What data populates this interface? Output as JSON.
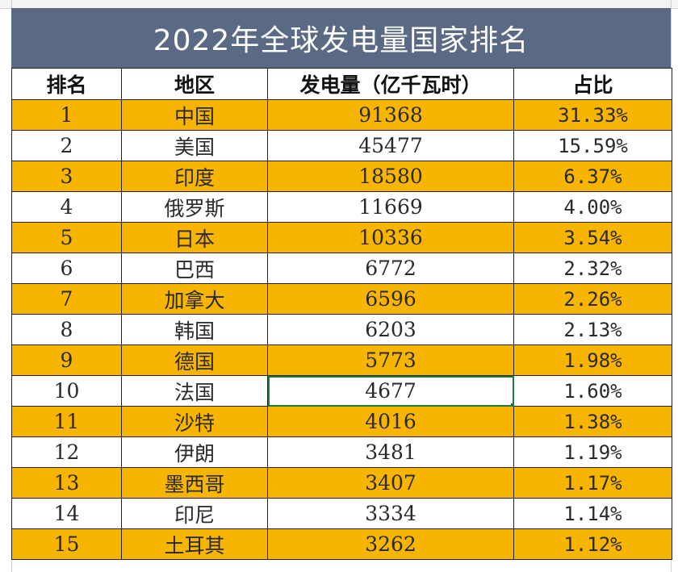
{
  "title": "2022年全球发电量国家排名",
  "headers": {
    "rank": "排名",
    "region": "地区",
    "generation": "发电量（亿千瓦时）",
    "share": "占比"
  },
  "rows": [
    {
      "rank": "1",
      "region": "中国",
      "generation": "91368",
      "share": "31.33%"
    },
    {
      "rank": "2",
      "region": "美国",
      "generation": "45477",
      "share": "15.59%"
    },
    {
      "rank": "3",
      "region": "印度",
      "generation": "18580",
      "share": "6.37%"
    },
    {
      "rank": "4",
      "region": "俄罗斯",
      "generation": "11669",
      "share": "4.00%"
    },
    {
      "rank": "5",
      "region": "日本",
      "generation": "10336",
      "share": "3.54%"
    },
    {
      "rank": "6",
      "region": "巴西",
      "generation": "6772",
      "share": "2.32%"
    },
    {
      "rank": "7",
      "region": "加拿大",
      "generation": "6596",
      "share": "2.26%"
    },
    {
      "rank": "8",
      "region": "韩国",
      "generation": "6203",
      "share": "2.13%"
    },
    {
      "rank": "9",
      "region": "德国",
      "generation": "5773",
      "share": "1.98%"
    },
    {
      "rank": "10",
      "region": "法国",
      "generation": "4677",
      "share": "1.60%"
    },
    {
      "rank": "11",
      "region": "沙特",
      "generation": "4016",
      "share": "1.38%"
    },
    {
      "rank": "12",
      "region": "伊朗",
      "generation": "3481",
      "share": "1.19%"
    },
    {
      "rank": "13",
      "region": "墨西哥",
      "generation": "3407",
      "share": "1.17%"
    },
    {
      "rank": "14",
      "region": "印尼",
      "generation": "3334",
      "share": "1.14%"
    },
    {
      "rank": "15",
      "region": "土耳其",
      "generation": "3262",
      "share": "1.12%"
    }
  ],
  "colors": {
    "title_bg": "#5a6a84",
    "highlight_row": "#f7b500",
    "plain_row": "#ffffff",
    "selection": "#1e7a3c"
  },
  "selected_cell": {
    "row": "10",
    "column": "generation"
  }
}
